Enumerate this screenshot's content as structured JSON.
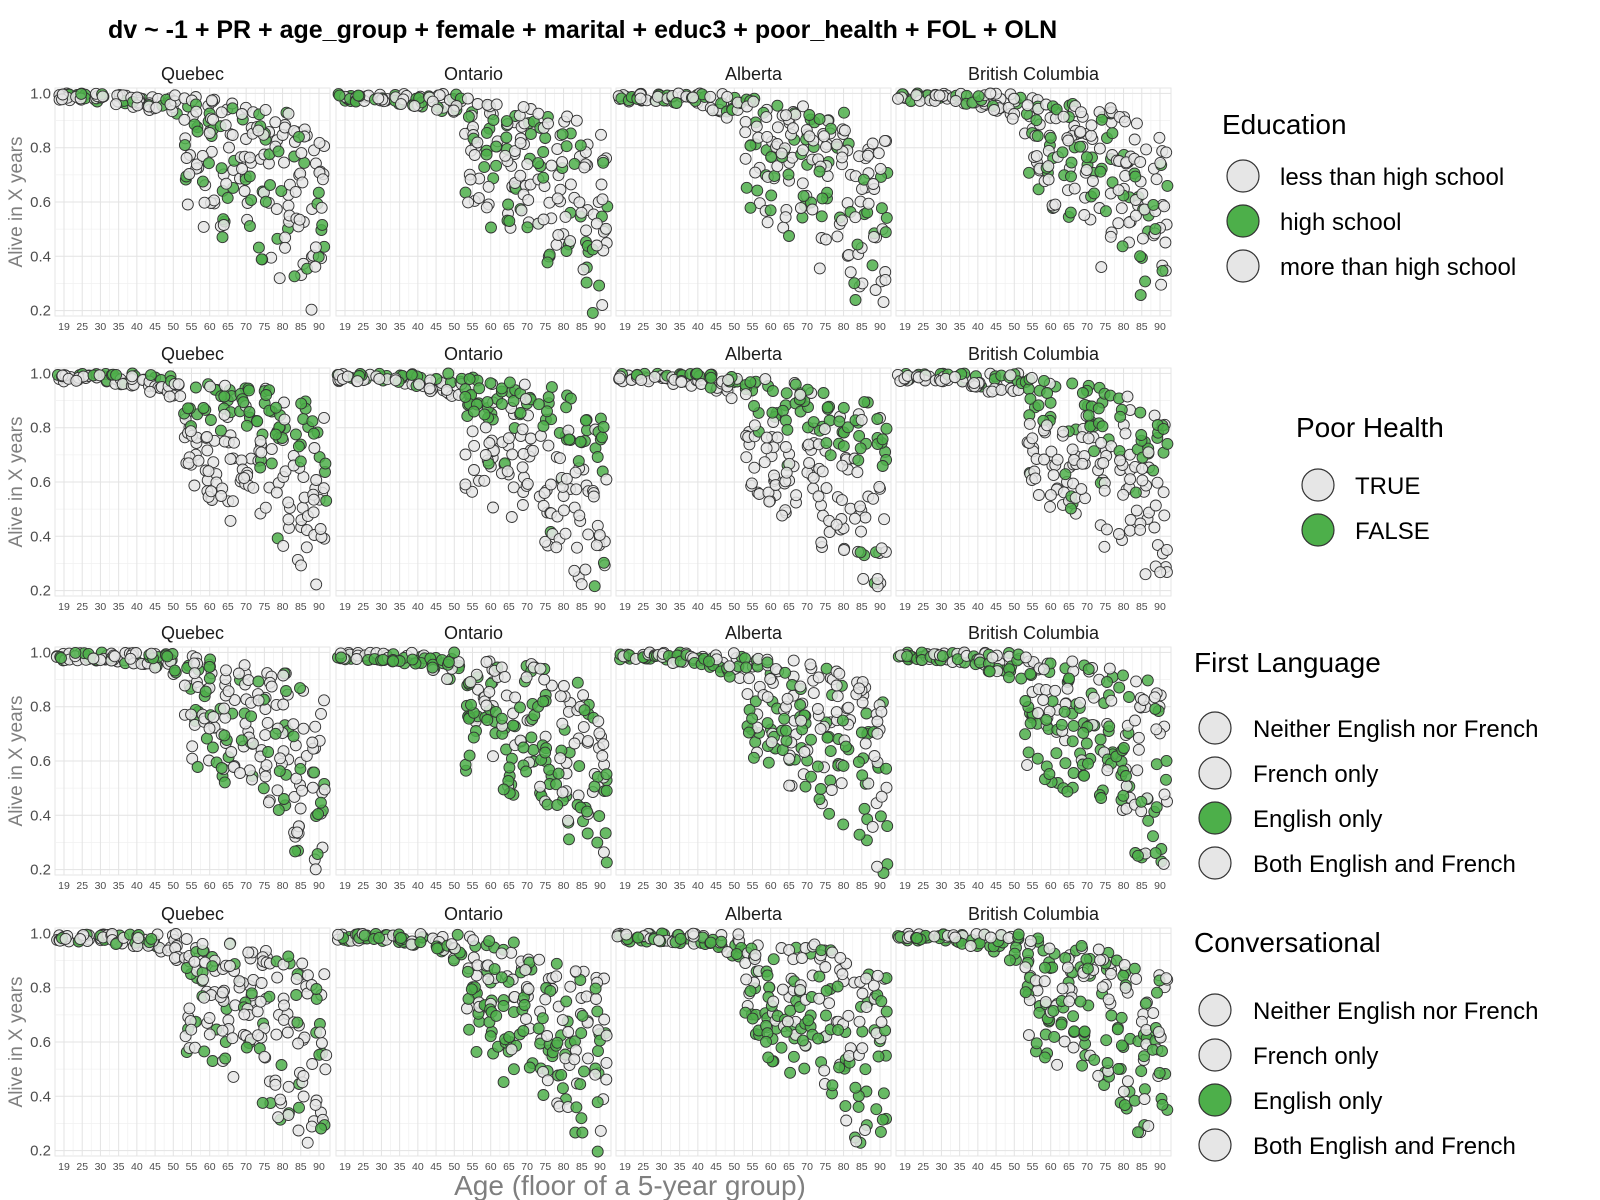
{
  "chart_data": {
    "type": "scatter",
    "title": "dv ~ -1 + PR + age_group + female + marital + educ3 + poor_health + FOL + OLN",
    "xlabel": "Age (floor of a 5-year group)",
    "ylabel": "Alive in X years",
    "provinces": [
      "Quebec",
      "Ontario",
      "Alberta",
      "British Columbia"
    ],
    "x_ticks": [
      "19",
      "25",
      "30",
      "35",
      "40",
      "45",
      "50",
      "55",
      "60",
      "65",
      "70",
      "75",
      "80",
      "85",
      "90"
    ],
    "y_ticks": [
      "0.2",
      "0.4",
      "0.6",
      "0.8",
      "1.0"
    ],
    "ylim": [
      0.18,
      1.02
    ],
    "grid": true,
    "legend_placement": "right",
    "colors": {
      "grey": "#e6e6e6",
      "green": "#4daf4a",
      "outline": "#333333"
    },
    "rows": [
      {
        "legend_title": "Education",
        "legend_items": [
          {
            "label": "less than high school",
            "color": "#e6e6e6"
          },
          {
            "label": "high school",
            "color": "#4daf4a"
          },
          {
            "label": "more than high school",
            "color": "#e6e6e6"
          }
        ]
      },
      {
        "legend_title": "Poor Health",
        "legend_items": [
          {
            "label": "TRUE",
            "color": "#e6e6e6"
          },
          {
            "label": "FALSE",
            "color": "#4daf4a"
          }
        ]
      },
      {
        "legend_title": "First Language",
        "legend_items": [
          {
            "label": "Neither English nor French",
            "color": "#e6e6e6"
          },
          {
            "label": "French only",
            "color": "#e6e6e6"
          },
          {
            "label": "English only",
            "color": "#4daf4a"
          },
          {
            "label": "Both English and French",
            "color": "#e6e6e6"
          }
        ]
      },
      {
        "legend_title": "Conversational",
        "legend_items": [
          {
            "label": "Neither English nor French",
            "color": "#e6e6e6"
          },
          {
            "label": "French only",
            "color": "#e6e6e6"
          },
          {
            "label": "English only",
            "color": "#4daf4a"
          },
          {
            "label": "Both English and French",
            "color": "#e6e6e6"
          }
        ]
      }
    ],
    "age_band_y_range": [
      {
        "age": "19",
        "y": [
          0.97,
          1.0
        ]
      },
      {
        "age": "25",
        "y": [
          0.97,
          1.0
        ]
      },
      {
        "age": "30",
        "y": [
          0.97,
          1.0
        ]
      },
      {
        "age": "35",
        "y": [
          0.96,
          1.0
        ]
      },
      {
        "age": "40",
        "y": [
          0.95,
          1.0
        ]
      },
      {
        "age": "45",
        "y": [
          0.93,
          1.0
        ]
      },
      {
        "age": "50",
        "y": [
          0.9,
          1.0
        ]
      },
      {
        "age": "55",
        "y": [
          0.55,
          0.99
        ]
      },
      {
        "age": "60",
        "y": [
          0.5,
          0.98
        ]
      },
      {
        "age": "65",
        "y": [
          0.45,
          0.97
        ]
      },
      {
        "age": "70",
        "y": [
          0.5,
          0.96
        ]
      },
      {
        "age": "75",
        "y": [
          0.35,
          0.95
        ]
      },
      {
        "age": "80",
        "y": [
          0.3,
          0.93
        ]
      },
      {
        "age": "85",
        "y": [
          0.22,
          0.9
        ]
      },
      {
        "age": "90",
        "y": [
          0.18,
          0.85
        ]
      }
    ]
  }
}
